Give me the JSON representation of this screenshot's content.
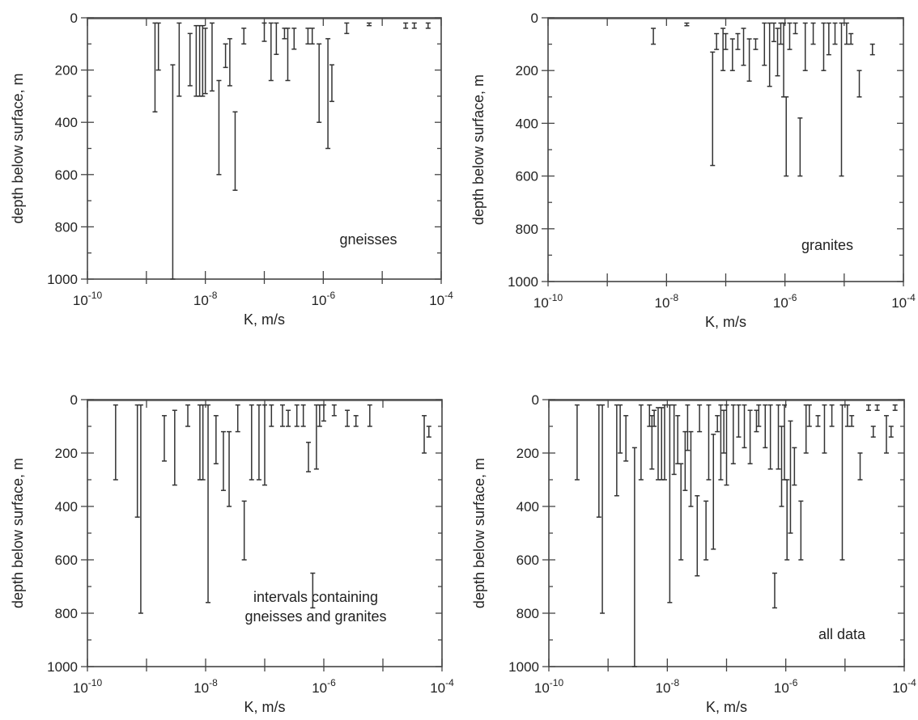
{
  "chart_data": [
    {
      "type": "interval",
      "xscale": "log",
      "xlim": [
        1e-10,
        0.0001
      ],
      "ylim": [
        1000,
        0
      ],
      "xlabel": "K, m/s",
      "ylabel": "depth below surface, m",
      "xtick_labels": [
        "10-10",
        "10-8",
        "10-6",
        "10-4"
      ],
      "ytick_labels": [
        "0",
        "200",
        "400",
        "600",
        "800",
        "1000"
      ],
      "annotation": "gneisses",
      "intervals": [
        {
          "k": 1.4e-09,
          "top": 20,
          "bottom": 360
        },
        {
          "k": 1.6e-09,
          "top": 20,
          "bottom": 200
        },
        {
          "k": 2.8e-09,
          "top": 180,
          "bottom": 1000
        },
        {
          "k": 3.6e-09,
          "top": 20,
          "bottom": 300
        },
        {
          "k": 5.5e-09,
          "top": 60,
          "bottom": 260
        },
        {
          "k": 7e-09,
          "top": 30,
          "bottom": 300
        },
        {
          "k": 8e-09,
          "top": 30,
          "bottom": 300
        },
        {
          "k": 9e-09,
          "top": 30,
          "bottom": 300
        },
        {
          "k": 1e-08,
          "top": 40,
          "bottom": 290
        },
        {
          "k": 1.3e-08,
          "top": 20,
          "bottom": 280
        },
        {
          "k": 1.7e-08,
          "top": 240,
          "bottom": 600
        },
        {
          "k": 2.2e-08,
          "top": 100,
          "bottom": 190
        },
        {
          "k": 2.6e-08,
          "top": 80,
          "bottom": 260
        },
        {
          "k": 3.2e-08,
          "top": 360,
          "bottom": 660
        },
        {
          "k": 4.5e-08,
          "top": 40,
          "bottom": 100
        },
        {
          "k": 1e-07,
          "top": 20,
          "bottom": 90
        },
        {
          "k": 1.3e-07,
          "top": 20,
          "bottom": 240
        },
        {
          "k": 1.6e-07,
          "top": 20,
          "bottom": 140
        },
        {
          "k": 2.2e-07,
          "top": 40,
          "bottom": 80
        },
        {
          "k": 2.5e-07,
          "top": 40,
          "bottom": 240
        },
        {
          "k": 3.2e-07,
          "top": 40,
          "bottom": 120
        },
        {
          "k": 5.5e-07,
          "top": 40,
          "bottom": 100
        },
        {
          "k": 6.5e-07,
          "top": 40,
          "bottom": 100
        },
        {
          "k": 8.5e-07,
          "top": 100,
          "bottom": 400
        },
        {
          "k": 1.2e-06,
          "top": 80,
          "bottom": 500
        },
        {
          "k": 1.4e-06,
          "top": 180,
          "bottom": 320
        },
        {
          "k": 2.5e-06,
          "top": 20,
          "bottom": 60
        },
        {
          "k": 6e-06,
          "top": 20,
          "bottom": 30
        },
        {
          "k": 2.5e-05,
          "top": 20,
          "bottom": 40
        },
        {
          "k": 3.5e-05,
          "top": 20,
          "bottom": 40
        },
        {
          "k": 6e-05,
          "top": 20,
          "bottom": 40
        }
      ]
    },
    {
      "type": "interval",
      "xscale": "log",
      "xlim": [
        1e-10,
        0.0001
      ],
      "ylim": [
        1000,
        0
      ],
      "xlabel": "K, m/s",
      "ylabel": "depth below surface, m",
      "xtick_labels": [
        "10-10",
        "10-8",
        "10-6",
        "10-4"
      ],
      "ytick_labels": [
        "0",
        "200",
        "400",
        "600",
        "800",
        "1000"
      ],
      "annotation": "granites",
      "intervals": [
        {
          "k": 6e-09,
          "top": 40,
          "bottom": 100
        },
        {
          "k": 2.2e-08,
          "top": 20,
          "bottom": 30
        },
        {
          "k": 6e-08,
          "top": 130,
          "bottom": 560
        },
        {
          "k": 7e-08,
          "top": 60,
          "bottom": 120
        },
        {
          "k": 9e-08,
          "top": 40,
          "bottom": 200
        },
        {
          "k": 1e-07,
          "top": 60,
          "bottom": 120
        },
        {
          "k": 1.3e-07,
          "top": 80,
          "bottom": 200
        },
        {
          "k": 1.6e-07,
          "top": 60,
          "bottom": 120
        },
        {
          "k": 2e-07,
          "top": 40,
          "bottom": 180
        },
        {
          "k": 2.5e-07,
          "top": 80,
          "bottom": 240
        },
        {
          "k": 3.2e-07,
          "top": 80,
          "bottom": 120
        },
        {
          "k": 4.5e-07,
          "top": 20,
          "bottom": 180
        },
        {
          "k": 5.5e-07,
          "top": 20,
          "bottom": 260
        },
        {
          "k": 6.5e-07,
          "top": 20,
          "bottom": 90
        },
        {
          "k": 7.5e-07,
          "top": 40,
          "bottom": 220
        },
        {
          "k": 8.5e-07,
          "top": 20,
          "bottom": 100
        },
        {
          "k": 9.5e-07,
          "top": 20,
          "bottom": 300
        },
        {
          "k": 1.05e-06,
          "top": 300,
          "bottom": 600
        },
        {
          "k": 1.2e-06,
          "top": 20,
          "bottom": 120
        },
        {
          "k": 1.5e-06,
          "top": 20,
          "bottom": 60
        },
        {
          "k": 1.8e-06,
          "top": 380,
          "bottom": 600
        },
        {
          "k": 2.2e-06,
          "top": 20,
          "bottom": 200
        },
        {
          "k": 3e-06,
          "top": 20,
          "bottom": 100
        },
        {
          "k": 4.5e-06,
          "top": 20,
          "bottom": 200
        },
        {
          "k": 5.5e-06,
          "top": 20,
          "bottom": 140
        },
        {
          "k": 7e-06,
          "top": 20,
          "bottom": 100
        },
        {
          "k": 9e-06,
          "top": 20,
          "bottom": 600
        },
        {
          "k": 1.1e-05,
          "top": 20,
          "bottom": 100
        },
        {
          "k": 1.3e-05,
          "top": 60,
          "bottom": 100
        },
        {
          "k": 1.8e-05,
          "top": 200,
          "bottom": 300
        },
        {
          "k": 3e-05,
          "top": 100,
          "bottom": 140
        }
      ]
    },
    {
      "type": "interval",
      "xscale": "log",
      "xlim": [
        1e-10,
        0.0001
      ],
      "ylim": [
        1000,
        0
      ],
      "xlabel": "K, m/s",
      "ylabel": "depth below surface, m",
      "xtick_labels": [
        "10-10",
        "10-8",
        "10-6",
        "10-4"
      ],
      "ytick_labels": [
        "0",
        "200",
        "400",
        "600",
        "800",
        "1000"
      ],
      "annotation_lines": [
        "intervals containing",
        "gneisses and granites"
      ],
      "intervals": [
        {
          "k": 3e-10,
          "top": 20,
          "bottom": 300
        },
        {
          "k": 7e-10,
          "top": 20,
          "bottom": 440
        },
        {
          "k": 8e-10,
          "top": 20,
          "bottom": 800
        },
        {
          "k": 2e-09,
          "top": 60,
          "bottom": 230
        },
        {
          "k": 3e-09,
          "top": 40,
          "bottom": 320
        },
        {
          "k": 5e-09,
          "top": 20,
          "bottom": 100
        },
        {
          "k": 8e-09,
          "top": 20,
          "bottom": 300
        },
        {
          "k": 9e-09,
          "top": 20,
          "bottom": 300
        },
        {
          "k": 1.1e-08,
          "top": 20,
          "bottom": 760
        },
        {
          "k": 1.5e-08,
          "top": 60,
          "bottom": 240
        },
        {
          "k": 2e-08,
          "top": 120,
          "bottom": 340
        },
        {
          "k": 2.5e-08,
          "top": 120,
          "bottom": 400
        },
        {
          "k": 3.5e-08,
          "top": 20,
          "bottom": 120
        },
        {
          "k": 4.5e-08,
          "top": 380,
          "bottom": 600
        },
        {
          "k": 6e-08,
          "top": 20,
          "bottom": 300
        },
        {
          "k": 8e-08,
          "top": 20,
          "bottom": 300
        },
        {
          "k": 1e-07,
          "top": 20,
          "bottom": 320
        },
        {
          "k": 1.3e-07,
          "top": 20,
          "bottom": 100
        },
        {
          "k": 2e-07,
          "top": 20,
          "bottom": 100
        },
        {
          "k": 2.5e-07,
          "top": 40,
          "bottom": 100
        },
        {
          "k": 3.5e-07,
          "top": 20,
          "bottom": 100
        },
        {
          "k": 4.5e-07,
          "top": 20,
          "bottom": 100
        },
        {
          "k": 5.5e-07,
          "top": 160,
          "bottom": 270
        },
        {
          "k": 6.5e-07,
          "top": 650,
          "bottom": 780
        },
        {
          "k": 7.5e-07,
          "top": 20,
          "bottom": 260
        },
        {
          "k": 8.5e-07,
          "top": 20,
          "bottom": 100
        },
        {
          "k": 1e-06,
          "top": 20,
          "bottom": 80
        },
        {
          "k": 1.5e-06,
          "top": 20,
          "bottom": 60
        },
        {
          "k": 2.5e-06,
          "top": 40,
          "bottom": 100
        },
        {
          "k": 3.5e-06,
          "top": 60,
          "bottom": 100
        },
        {
          "k": 6e-06,
          "top": 20,
          "bottom": 100
        },
        {
          "k": 5e-05,
          "top": 60,
          "bottom": 200
        },
        {
          "k": 6e-05,
          "top": 100,
          "bottom": 140
        }
      ]
    },
    {
      "type": "interval",
      "xscale": "log",
      "xlim": [
        1e-10,
        0.0001
      ],
      "ylim": [
        1000,
        0
      ],
      "xlabel": "K, m/s",
      "ylabel": "depth below surface, m",
      "xtick_labels": [
        "10-10",
        "10-8",
        "10-6",
        "10-4"
      ],
      "ytick_labels": [
        "0",
        "200",
        "400",
        "600",
        "800",
        "1000"
      ],
      "annotation": "all data",
      "intervals": [
        {
          "k": 3e-10,
          "top": 20,
          "bottom": 300
        },
        {
          "k": 7e-10,
          "top": 20,
          "bottom": 440
        },
        {
          "k": 8e-10,
          "top": 20,
          "bottom": 800
        },
        {
          "k": 1.4e-09,
          "top": 20,
          "bottom": 360
        },
        {
          "k": 1.6e-09,
          "top": 20,
          "bottom": 200
        },
        {
          "k": 2e-09,
          "top": 60,
          "bottom": 230
        },
        {
          "k": 2.8e-09,
          "top": 180,
          "bottom": 1000
        },
        {
          "k": 3.6e-09,
          "top": 20,
          "bottom": 300
        },
        {
          "k": 5e-09,
          "top": 20,
          "bottom": 100
        },
        {
          "k": 5.5e-09,
          "top": 60,
          "bottom": 260
        },
        {
          "k": 6e-09,
          "top": 40,
          "bottom": 100
        },
        {
          "k": 7e-09,
          "top": 30,
          "bottom": 300
        },
        {
          "k": 8e-09,
          "top": 30,
          "bottom": 300
        },
        {
          "k": 9e-09,
          "top": 20,
          "bottom": 300
        },
        {
          "k": 1.1e-08,
          "top": 20,
          "bottom": 760
        },
        {
          "k": 1.3e-08,
          "top": 20,
          "bottom": 280
        },
        {
          "k": 1.5e-08,
          "top": 60,
          "bottom": 240
        },
        {
          "k": 1.7e-08,
          "top": 240,
          "bottom": 600
        },
        {
          "k": 2e-08,
          "top": 120,
          "bottom": 340
        },
        {
          "k": 2.2e-08,
          "top": 20,
          "bottom": 190
        },
        {
          "k": 2.5e-08,
          "top": 120,
          "bottom": 400
        },
        {
          "k": 3.2e-08,
          "top": 360,
          "bottom": 660
        },
        {
          "k": 3.5e-08,
          "top": 20,
          "bottom": 120
        },
        {
          "k": 4.5e-08,
          "top": 380,
          "bottom": 600
        },
        {
          "k": 5e-08,
          "top": 20,
          "bottom": 300
        },
        {
          "k": 6e-08,
          "top": 130,
          "bottom": 560
        },
        {
          "k": 7e-08,
          "top": 60,
          "bottom": 120
        },
        {
          "k": 8e-08,
          "top": 20,
          "bottom": 300
        },
        {
          "k": 9e-08,
          "top": 40,
          "bottom": 200
        },
        {
          "k": 1e-07,
          "top": 20,
          "bottom": 320
        },
        {
          "k": 1.3e-07,
          "top": 20,
          "bottom": 240
        },
        {
          "k": 1.6e-07,
          "top": 20,
          "bottom": 140
        },
        {
          "k": 2e-07,
          "top": 20,
          "bottom": 180
        },
        {
          "k": 2.5e-07,
          "top": 40,
          "bottom": 240
        },
        {
          "k": 3.2e-07,
          "top": 40,
          "bottom": 120
        },
        {
          "k": 3.5e-07,
          "top": 20,
          "bottom": 100
        },
        {
          "k": 4.5e-07,
          "top": 20,
          "bottom": 180
        },
        {
          "k": 5.5e-07,
          "top": 20,
          "bottom": 260
        },
        {
          "k": 6.5e-07,
          "top": 650,
          "bottom": 780
        },
        {
          "k": 7.5e-07,
          "top": 20,
          "bottom": 260
        },
        {
          "k": 8.5e-07,
          "top": 100,
          "bottom": 400
        },
        {
          "k": 9.5e-07,
          "top": 20,
          "bottom": 300
        },
        {
          "k": 1.05e-06,
          "top": 300,
          "bottom": 600
        },
        {
          "k": 1.2e-06,
          "top": 80,
          "bottom": 500
        },
        {
          "k": 1.4e-06,
          "top": 180,
          "bottom": 320
        },
        {
          "k": 1.8e-06,
          "top": 380,
          "bottom": 600
        },
        {
          "k": 2.2e-06,
          "top": 20,
          "bottom": 200
        },
        {
          "k": 2.5e-06,
          "top": 20,
          "bottom": 100
        },
        {
          "k": 3.5e-06,
          "top": 60,
          "bottom": 100
        },
        {
          "k": 4.5e-06,
          "top": 20,
          "bottom": 200
        },
        {
          "k": 6e-06,
          "top": 20,
          "bottom": 100
        },
        {
          "k": 9e-06,
          "top": 20,
          "bottom": 600
        },
        {
          "k": 1.1e-05,
          "top": 20,
          "bottom": 100
        },
        {
          "k": 1.3e-05,
          "top": 60,
          "bottom": 100
        },
        {
          "k": 1.8e-05,
          "top": 200,
          "bottom": 300
        },
        {
          "k": 2.5e-05,
          "top": 20,
          "bottom": 40
        },
        {
          "k": 3e-05,
          "top": 100,
          "bottom": 140
        },
        {
          "k": 3.5e-05,
          "top": 20,
          "bottom": 40
        },
        {
          "k": 5e-05,
          "top": 60,
          "bottom": 200
        },
        {
          "k": 6e-05,
          "top": 100,
          "bottom": 140
        },
        {
          "k": 7e-05,
          "top": 20,
          "bottom": 40
        }
      ]
    }
  ]
}
